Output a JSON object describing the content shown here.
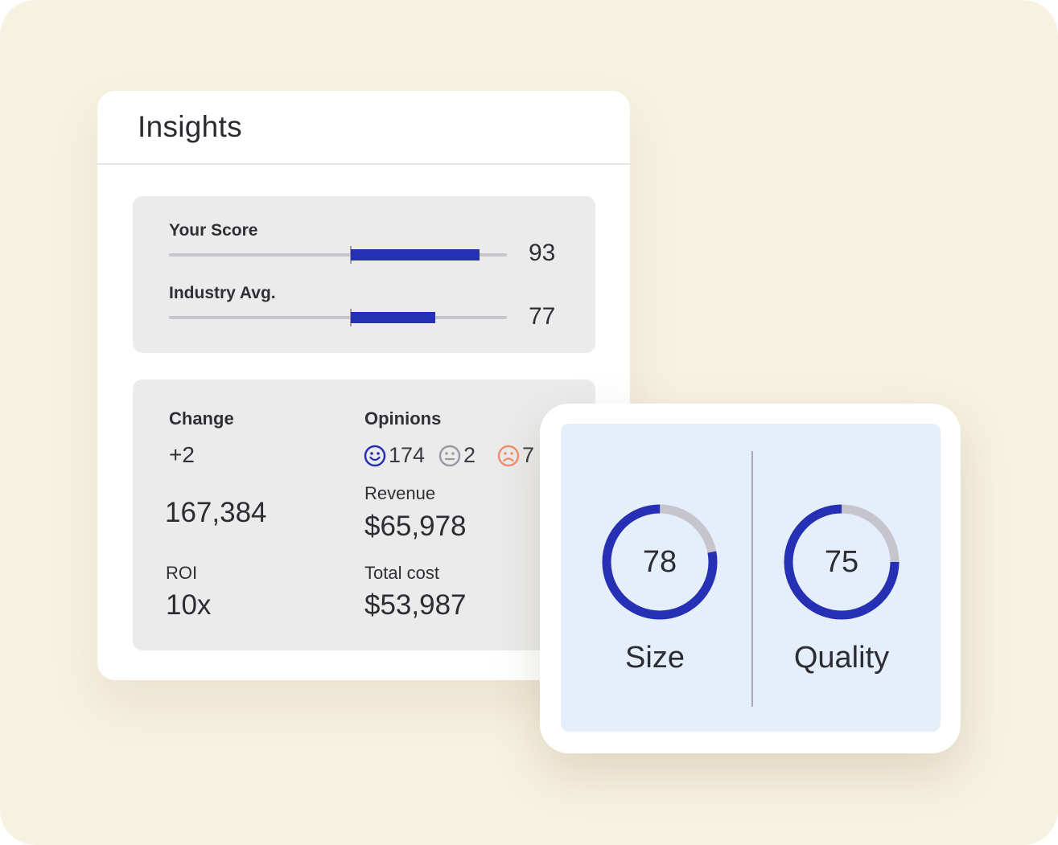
{
  "insights": {
    "title": "Insights",
    "scores": [
      {
        "label": "Your Score",
        "value": "93",
        "fill_fraction": 0.38
      },
      {
        "label": "Industry Avg.",
        "value": "77",
        "fill_fraction": 0.25
      }
    ]
  },
  "stats": {
    "change_label": "Change",
    "change_value": "+2",
    "total_value": "167,384",
    "roi_label": "ROI",
    "roi_value": "10x",
    "opinions_label": "Opinions",
    "opinions": [
      {
        "icon": "happy-face-icon",
        "count": "174",
        "color": "#2530b4"
      },
      {
        "icon": "neutral-face-icon",
        "count": "2",
        "color": "#9a9aa3"
      },
      {
        "icon": "sad-face-icon",
        "count": "7",
        "color": "#f08f72"
      }
    ],
    "revenue_label": "Revenue",
    "revenue_value": "$65,978",
    "total_cost_label": "Total cost",
    "total_cost_value": "$53,987"
  },
  "gauges": [
    {
      "label": "Size",
      "value": "78",
      "fraction": 0.78
    },
    {
      "label": "Quality",
      "value": "75",
      "fraction": 0.75
    }
  ],
  "colors": {
    "background": "#f7f1e1",
    "accent": "#2530b4",
    "track": "#c6c5cd",
    "panel": "#ebebeb",
    "gauge_panel": "#e5eefb"
  }
}
